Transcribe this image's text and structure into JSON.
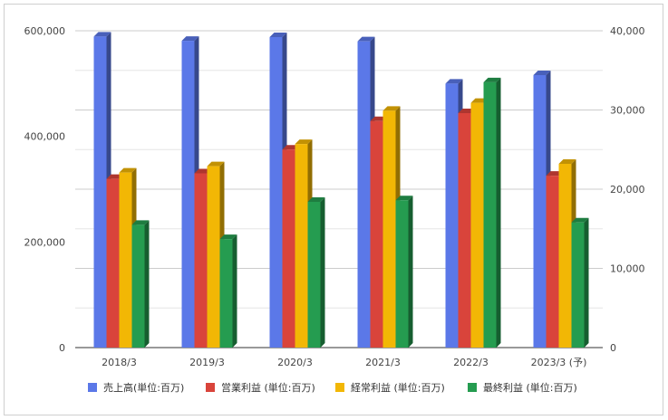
{
  "chart_data": {
    "type": "bar",
    "style": "3d-clustered-column",
    "categories": [
      "2018/3",
      "2019/3",
      "2020/3",
      "2021/3",
      "2022/3",
      "2023/3 (予)"
    ],
    "series": [
      {
        "name": "売上高(単位:百万)",
        "color": "#5b78e8",
        "axis": "left",
        "values": [
          589000,
          581000,
          588000,
          580000,
          500000,
          516000
        ]
      },
      {
        "name": "営業利益 (単位:百万)",
        "color": "#d9443b",
        "axis": "right",
        "values": [
          21300,
          22000,
          25000,
          28600,
          29600,
          21700
        ]
      },
      {
        "name": "経常利益 (単位:百万)",
        "color": "#f2b705",
        "axis": "right",
        "values": [
          22100,
          22900,
          25700,
          29900,
          30900,
          23200
        ]
      },
      {
        "name": "最終利益 (単位:百万)",
        "color": "#259c50",
        "axis": "right",
        "values": [
          15500,
          13700,
          18400,
          18600,
          33500,
          15800
        ]
      }
    ],
    "y_left": {
      "ylim": [
        0,
        600000
      ],
      "ticks": [
        "0",
        "200,000",
        "400,000",
        "600,000"
      ]
    },
    "y_right": {
      "ylim": [
        0,
        40000
      ],
      "ticks": [
        "0",
        "10,000",
        "20,000",
        "30,000",
        "40,000"
      ]
    },
    "grid": true,
    "legend_position": "bottom"
  }
}
